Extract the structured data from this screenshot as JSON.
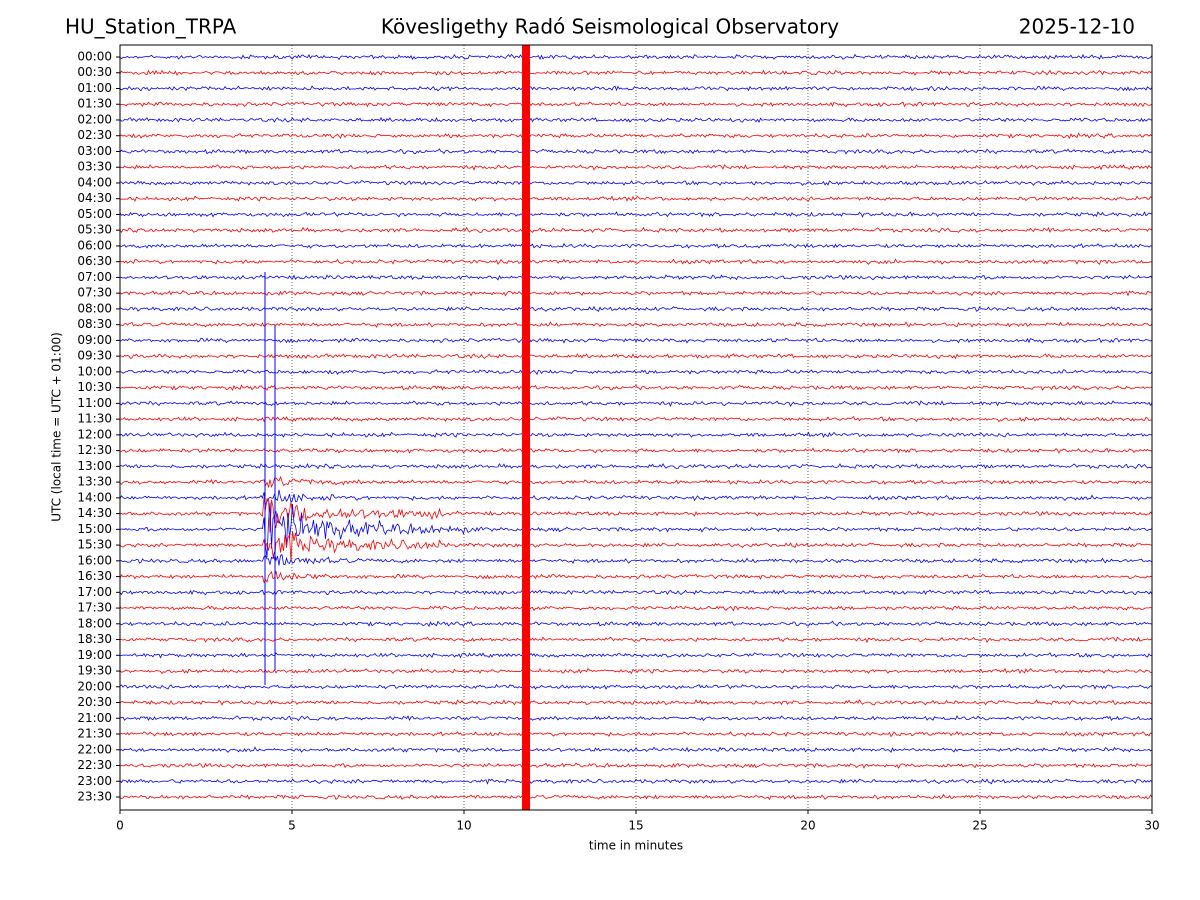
{
  "chart_data": {
    "type": "helicorder",
    "title_left": "HU_Station_TRPA",
    "title": "Kövesligethy Radó Seismological Observatory",
    "title_right": "2025-12-10",
    "xlabel": "time in minutes",
    "ylabel": "UTC (local time = UTC + 01:00)",
    "categories": [
      "00:00",
      "00:30",
      "01:00",
      "01:30",
      "02:00",
      "02:30",
      "03:00",
      "03:30",
      "04:00",
      "04:30",
      "05:00",
      "05:30",
      "06:00",
      "06:30",
      "07:00",
      "07:30",
      "08:00",
      "08:30",
      "09:00",
      "09:30",
      "10:00",
      "10:30",
      "11:00",
      "11:30",
      "12:00",
      "12:30",
      "13:00",
      "13:30",
      "14:00",
      "14:30",
      "15:00",
      "15:30",
      "16:00",
      "16:30",
      "17:00",
      "17:30",
      "18:00",
      "18:30",
      "19:00",
      "19:30",
      "20:00",
      "20:30",
      "21:00",
      "21:30",
      "22:00",
      "22:30",
      "23:00",
      "23:30"
    ],
    "colors": [
      "#0000ff",
      "#ff0000"
    ],
    "xlim": [
      0,
      30
    ],
    "xticks": [
      0,
      5,
      10,
      15,
      20,
      25,
      30
    ],
    "grid": true
  }
}
